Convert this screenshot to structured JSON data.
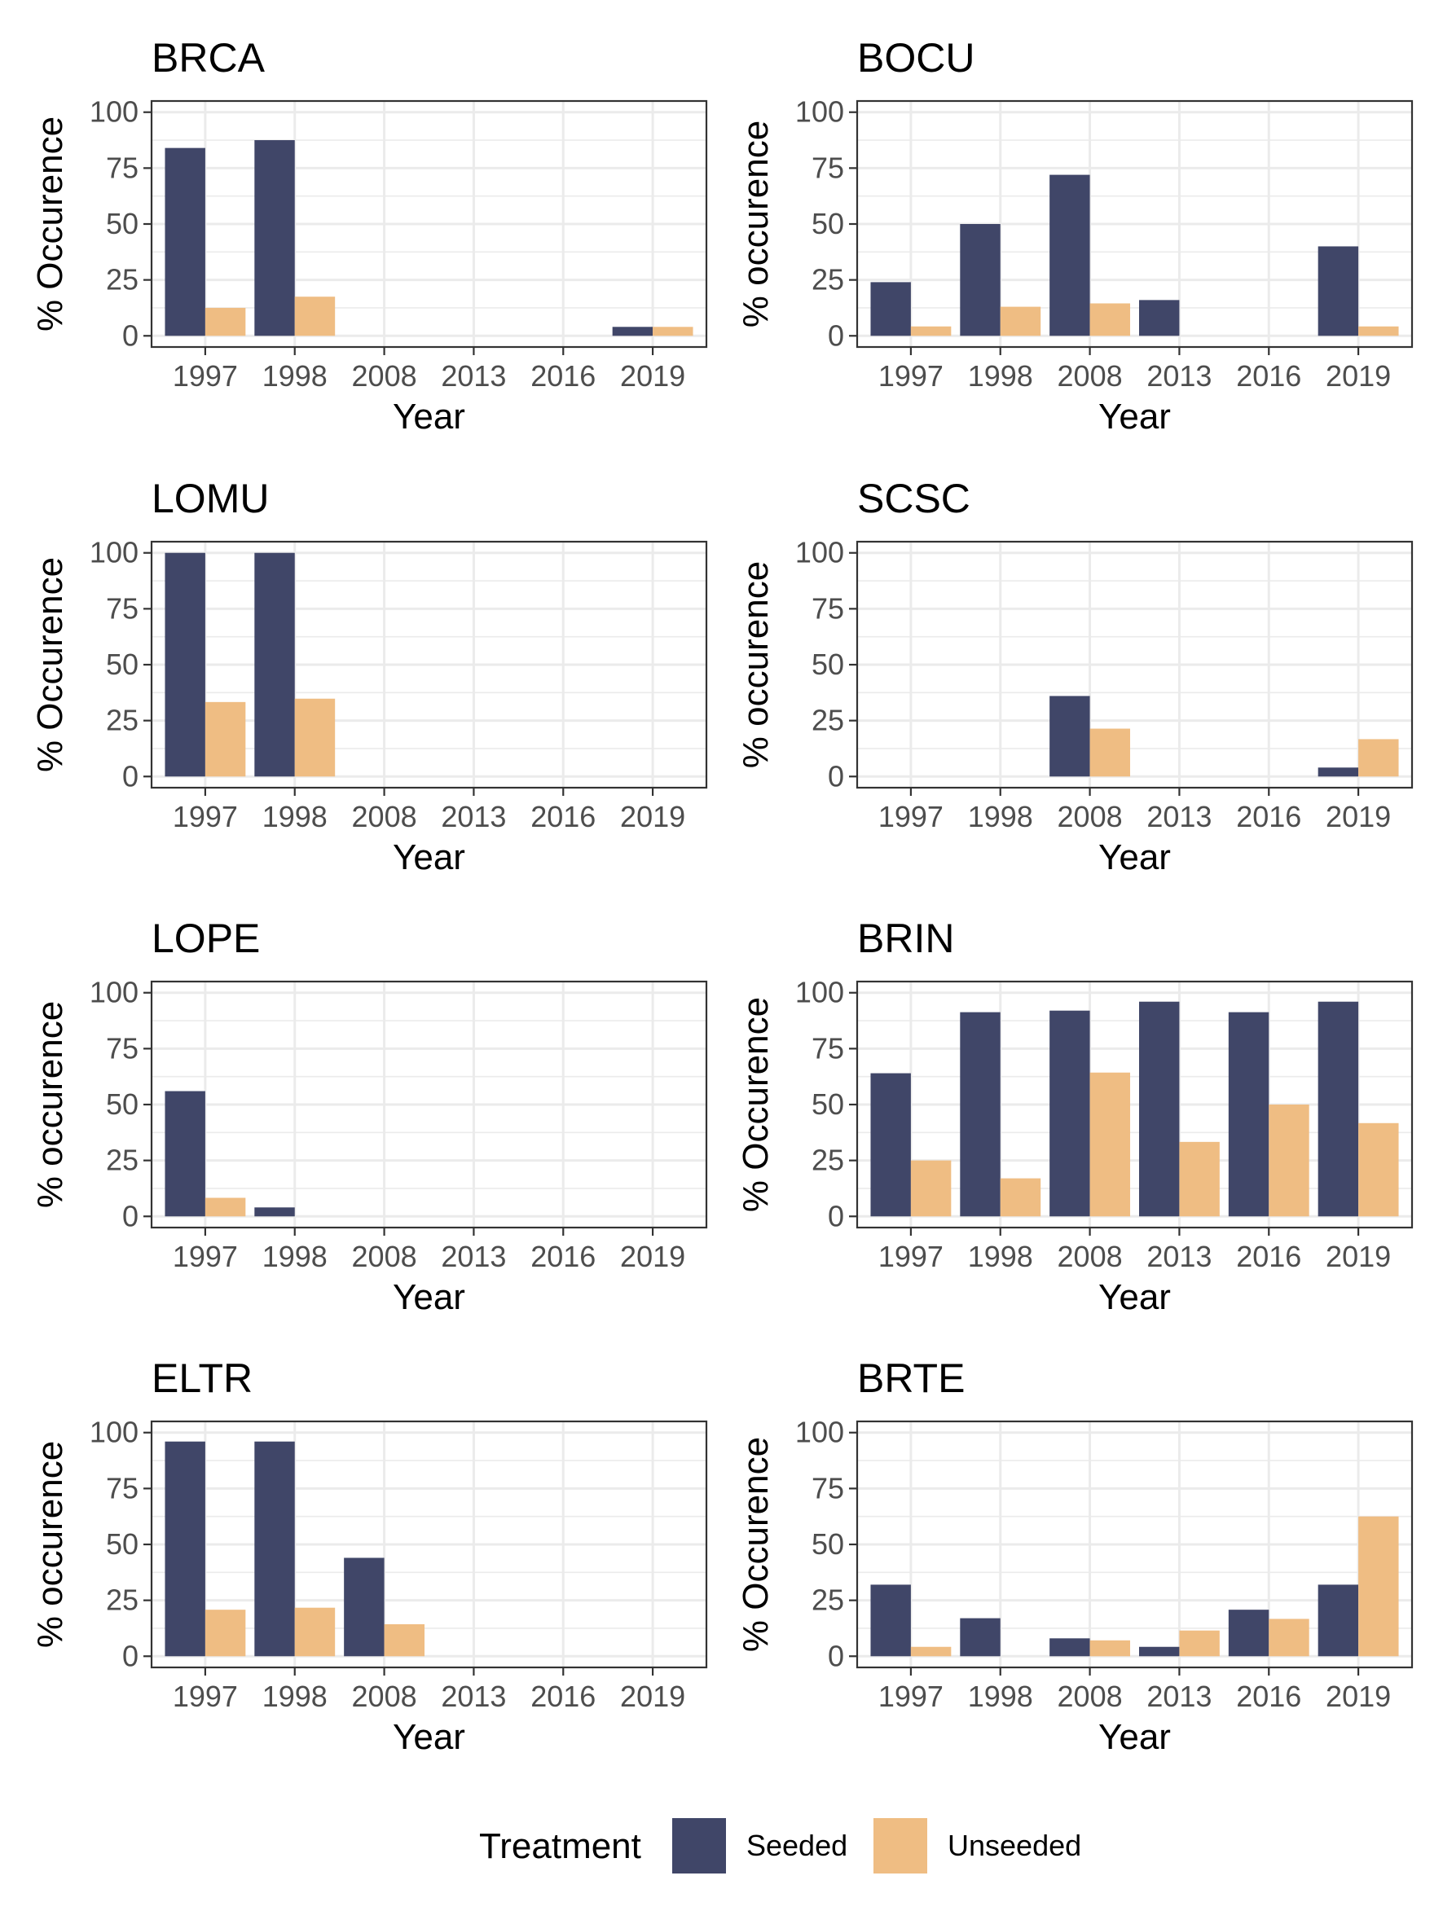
{
  "colors": {
    "seeded": "#404668",
    "unseeded": "#EFBD83",
    "grid": "#EBEBEB",
    "panel_border": "#333333"
  },
  "legend": {
    "title": "Treatment",
    "entries": [
      {
        "name": "Seeded",
        "color": "#404668"
      },
      {
        "name": "Unseeded",
        "color": "#EFBD83"
      }
    ]
  },
  "chart_data": [
    {
      "type": "bar",
      "title": "BRCA",
      "xlabel": "Year",
      "ylabel": "% Occurence",
      "categories": [
        "1997",
        "1998",
        "2008",
        "2013",
        "2016",
        "2019"
      ],
      "ylim": [
        0,
        100
      ],
      "yticks": [
        0,
        25,
        50,
        75,
        100
      ],
      "grid": true,
      "series": [
        {
          "name": "Seeded",
          "values": [
            84,
            87.5,
            0,
            0,
            0,
            4
          ]
        },
        {
          "name": "Unseeded",
          "values": [
            12.5,
            17.5,
            0,
            0,
            0,
            4
          ]
        }
      ]
    },
    {
      "type": "bar",
      "title": "BOCU",
      "xlabel": "Year",
      "ylabel": "% occurence",
      "categories": [
        "1997",
        "1998",
        "2008",
        "2013",
        "2016",
        "2019"
      ],
      "ylim": [
        0,
        100
      ],
      "yticks": [
        0,
        25,
        50,
        75,
        100
      ],
      "grid": true,
      "series": [
        {
          "name": "Seeded",
          "values": [
            24,
            50,
            72,
            16,
            0,
            40
          ]
        },
        {
          "name": "Unseeded",
          "values": [
            4.2,
            13,
            14.5,
            0,
            0,
            4.2
          ]
        }
      ]
    },
    {
      "type": "bar",
      "title": "LOMU",
      "xlabel": "Year",
      "ylabel": "% Occurence",
      "categories": [
        "1997",
        "1998",
        "2008",
        "2013",
        "2016",
        "2019"
      ],
      "ylim": [
        0,
        100
      ],
      "yticks": [
        0,
        25,
        50,
        75,
        100
      ],
      "grid": true,
      "series": [
        {
          "name": "Seeded",
          "values": [
            100,
            100,
            0,
            0,
            0,
            0
          ]
        },
        {
          "name": "Unseeded",
          "values": [
            33.3,
            34.8,
            0,
            0,
            0,
            0
          ]
        }
      ]
    },
    {
      "type": "bar",
      "title": "SCSC",
      "xlabel": "Year",
      "ylabel": "% occurence",
      "categories": [
        "1997",
        "1998",
        "2008",
        "2013",
        "2016",
        "2019"
      ],
      "ylim": [
        0,
        100
      ],
      "yticks": [
        0,
        25,
        50,
        75,
        100
      ],
      "grid": true,
      "series": [
        {
          "name": "Seeded",
          "values": [
            0,
            0,
            36,
            0,
            0,
            4
          ]
        },
        {
          "name": "Unseeded",
          "values": [
            0,
            0,
            21.4,
            0,
            0,
            16.7
          ]
        }
      ]
    },
    {
      "type": "bar",
      "title": "LOPE",
      "xlabel": "Year",
      "ylabel": "% occurence",
      "categories": [
        "1997",
        "1998",
        "2008",
        "2013",
        "2016",
        "2019"
      ],
      "ylim": [
        0,
        100
      ],
      "yticks": [
        0,
        25,
        50,
        75,
        100
      ],
      "grid": true,
      "series": [
        {
          "name": "Seeded",
          "values": [
            56,
            4,
            0,
            0,
            0,
            0
          ]
        },
        {
          "name": "Unseeded",
          "values": [
            8.3,
            0,
            0,
            0,
            0,
            0
          ]
        }
      ]
    },
    {
      "type": "bar",
      "title": "BRIN",
      "xlabel": "Year",
      "ylabel": "% Occurence",
      "categories": [
        "1997",
        "1998",
        "2008",
        "2013",
        "2016",
        "2019"
      ],
      "ylim": [
        0,
        100
      ],
      "yticks": [
        0,
        25,
        50,
        75,
        100
      ],
      "grid": true,
      "series": [
        {
          "name": "Seeded",
          "values": [
            64,
            91.3,
            92,
            96,
            91.3,
            96
          ]
        },
        {
          "name": "Unseeded",
          "values": [
            25,
            17,
            64.3,
            33.3,
            50,
            41.7
          ]
        }
      ]
    },
    {
      "type": "bar",
      "title": "ELTR",
      "xlabel": "Year",
      "ylabel": "% occurence",
      "categories": [
        "1997",
        "1998",
        "2008",
        "2013",
        "2016",
        "2019"
      ],
      "ylim": [
        0,
        100
      ],
      "yticks": [
        0,
        25,
        50,
        75,
        100
      ],
      "grid": true,
      "series": [
        {
          "name": "Seeded",
          "values": [
            96,
            96,
            44,
            0,
            0,
            0
          ]
        },
        {
          "name": "Unseeded",
          "values": [
            20.8,
            21.7,
            14.3,
            0,
            0,
            0
          ]
        }
      ]
    },
    {
      "type": "bar",
      "title": "BRTE",
      "xlabel": "Year",
      "ylabel": "% Occurence",
      "categories": [
        "1997",
        "1998",
        "2008",
        "2013",
        "2016",
        "2019"
      ],
      "ylim": [
        0,
        100
      ],
      "yticks": [
        0,
        25,
        50,
        75,
        100
      ],
      "grid": true,
      "series": [
        {
          "name": "Seeded",
          "values": [
            32,
            17,
            8,
            4.2,
            20.8,
            32
          ]
        },
        {
          "name": "Unseeded",
          "values": [
            4.2,
            0,
            7.1,
            11.5,
            16.7,
            62.5
          ]
        }
      ]
    }
  ]
}
